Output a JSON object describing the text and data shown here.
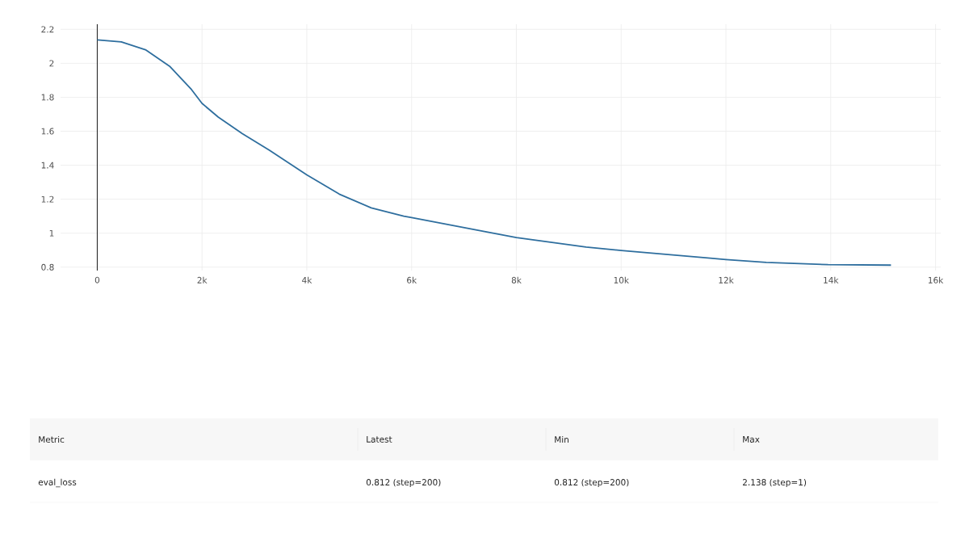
{
  "chart_data": {
    "type": "line",
    "x": [
      0,
      460,
      920,
      1380,
      1800,
      2000,
      2310,
      2770,
      3280,
      4000,
      4620,
      5230,
      5850,
      6000,
      7330,
      8000,
      9330,
      10000,
      11700,
      12000,
      12770,
      13950,
      15150
    ],
    "series": [
      {
        "color": "#2e6e9e",
        "values": [
          2.138,
          2.126,
          2.08,
          1.983,
          1.845,
          1.764,
          1.683,
          1.586,
          1.489,
          1.343,
          1.23,
          1.149,
          1.1,
          1.092,
          1.014,
          0.974,
          0.918,
          0.898,
          0.853,
          0.845,
          0.828,
          0.815,
          0.812
        ]
      }
    ],
    "xlim": [
      -700,
      16100
    ],
    "ylim": [
      0.78,
      2.23
    ],
    "xticks": [
      0,
      {
        "value": 2000,
        "label": "2k"
      },
      {
        "value": 4000,
        "label": "4k"
      },
      {
        "value": 6000,
        "label": "6k"
      },
      {
        "value": 8000,
        "label": "8k"
      },
      {
        "value": 10000,
        "label": "10k"
      },
      {
        "value": 12000,
        "label": "12k"
      },
      {
        "value": 14000,
        "label": "14k"
      },
      {
        "value": 16000,
        "label": "16k"
      }
    ],
    "yticks": [
      0.8,
      1,
      1.2,
      1.4,
      1.6,
      1.8,
      2,
      2.2
    ],
    "grid": true,
    "marker": "none",
    "line_style": "solid",
    "annotations": [
      "Metric",
      "Latest",
      "Min",
      "Max",
      "eval_loss",
      "0.812 (step=200)",
      "0.812 (step=200)",
      "2.138 (step=1)"
    ]
  }
}
